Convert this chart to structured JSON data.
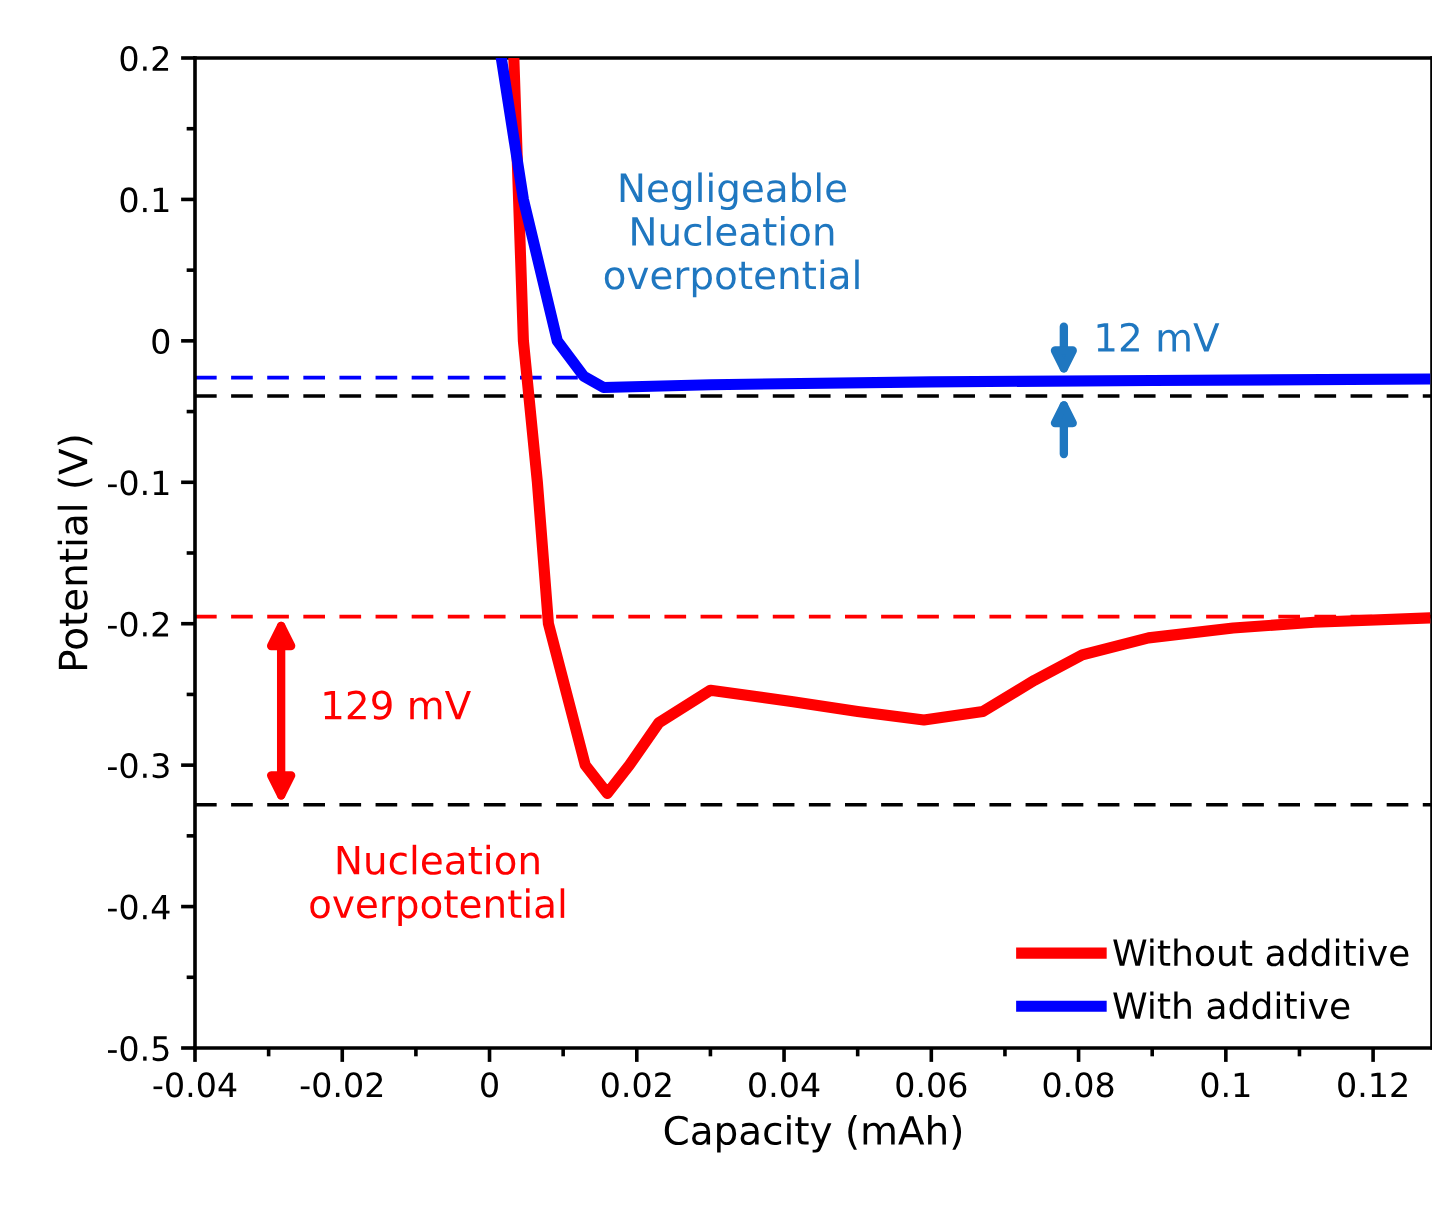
{
  "chart_data": {
    "type": "line",
    "xlabel": "Capacity (mAh)",
    "ylabel": "Potential (V)",
    "xlim": [
      -0.04,
      0.128
    ],
    "xticks": [
      {
        "value": -0.04,
        "label": "-0.04"
      },
      {
        "value": -0.02,
        "label": "-0.02"
      },
      0,
      0.02,
      0.04,
      0.06,
      0.08,
      0.1,
      0.12
    ],
    "ylim": [
      -0.5,
      0.2
    ],
    "yticks": [
      {
        "value": -0.5,
        "label": "-0.5"
      },
      {
        "value": -0.4,
        "label": "-0.4"
      },
      {
        "value": -0.3,
        "label": "-0.3"
      },
      {
        "value": -0.2,
        "label": "-0.2"
      },
      {
        "value": -0.1,
        "label": "-0.1"
      },
      0,
      0.1,
      0.2
    ],
    "grid": false,
    "legend": "bottom right",
    "line_style": "solid",
    "marker": "none",
    "series": [
      {
        "name": "Without additive",
        "color": "#ff0000",
        "x": [
          0.0033,
          0.0046,
          0.0065,
          0.008,
          0.013,
          0.016,
          0.019,
          0.023,
          0.03,
          0.041,
          0.05,
          0.059,
          0.067,
          0.074,
          0.0805,
          0.0895,
          0.101,
          0.112,
          0.127
        ],
        "values": [
          0.2,
          0,
          -0.1,
          -0.2,
          -0.3,
          -0.32,
          -0.3,
          -0.27,
          -0.247,
          -0.255,
          -0.262,
          -0.268,
          -0.262,
          -0.24,
          -0.222,
          -0.21,
          -0.203,
          -0.199,
          -0.196
        ]
      },
      {
        "name": "With additive",
        "color": "#0000ff",
        "x": [
          0.0016,
          0.0046,
          0.0092,
          0.0128,
          0.0155,
          0.03,
          0.06,
          0.09,
          0.127
        ],
        "values": [
          0.2,
          0.1,
          0,
          -0.025,
          -0.033,
          -0.031,
          -0.029,
          -0.028,
          -0.027
        ]
      },
      {
        "color": "#0000ff",
        "line_style": "dashed",
        "x": [
          -0.04,
          0.014
        ],
        "values": [
          -0.026,
          -0.026
        ]
      }
    ],
    "ref_lines": [
      {
        "axis": "y",
        "value": -0.039,
        "color": "#000000",
        "line_style": "dashed"
      },
      {
        "axis": "y",
        "value": -0.195,
        "color": "#ff0000",
        "line_style": "dashed"
      },
      {
        "axis": "y",
        "value": -0.328,
        "color": "#000000",
        "line_style": "dashed"
      }
    ],
    "annotations": [
      "Negligeable\nNucleation\noverpotential",
      "12 mV",
      "129 mV",
      "Nucleation\noverpotential"
    ]
  }
}
